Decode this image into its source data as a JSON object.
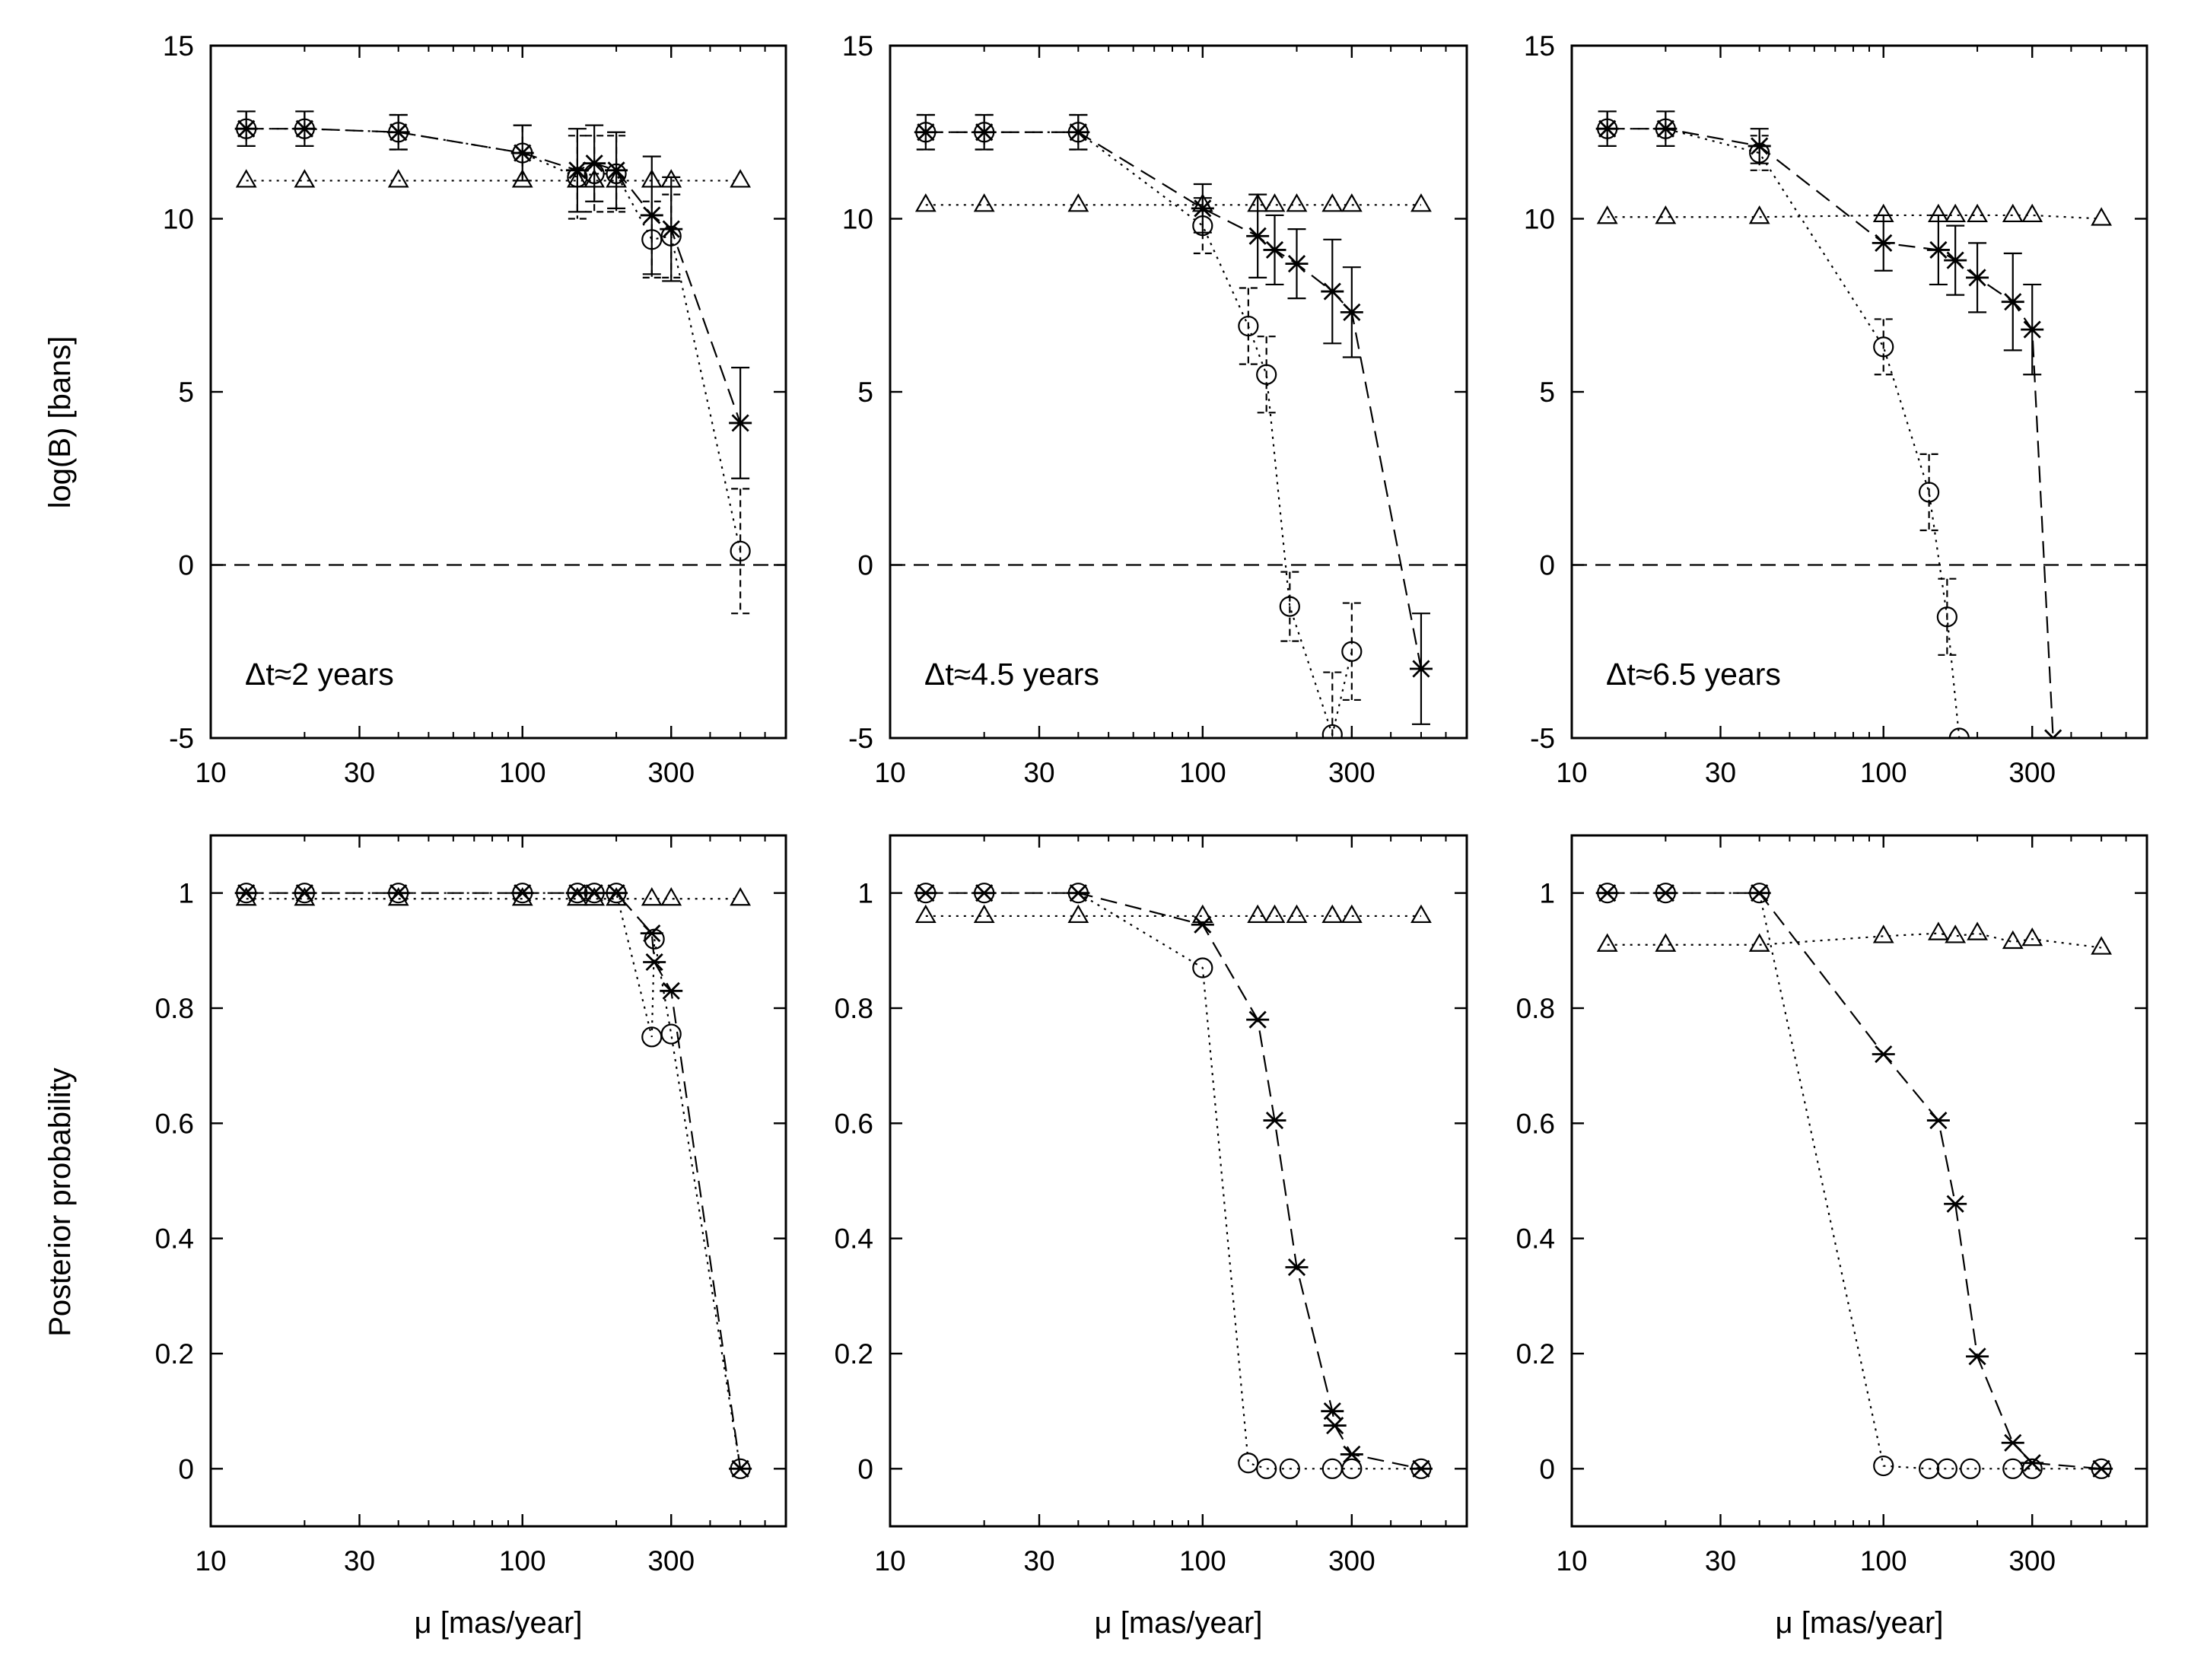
{
  "figure": {
    "row_labels": [
      "log(B) [bans]",
      "Posterior probability"
    ],
    "xlabel": "μ [mas/year]"
  },
  "chart_data": [
    {
      "type": "line",
      "panel": "log-bayes-factor",
      "annotation": "Δt≈2 years",
      "xscale": "log",
      "xlim": [
        10,
        700
      ],
      "ylim": [
        -5,
        15
      ],
      "xticks": [
        10,
        30,
        100,
        300
      ],
      "xtick_labels": [
        "10",
        "30",
        "100",
        "300"
      ],
      "yticks": [
        -5,
        0,
        5,
        10,
        15
      ],
      "ytick_labels": [
        "-5",
        "0",
        "5",
        "10",
        "15"
      ],
      "ylabel": "log(B) [bans]",
      "xlabel": "",
      "reference_line": 0,
      "series": [
        {
          "name": "star",
          "marker": "star",
          "style": "dashed",
          "x": [
            13,
            20,
            40,
            100,
            150,
            170,
            200,
            260,
            300,
            500
          ],
          "y": [
            12.6,
            12.6,
            12.5,
            11.9,
            11.4,
            11.6,
            11.4,
            10.1,
            9.7,
            4.1
          ],
          "err": [
            0.5,
            0.5,
            0.5,
            0.8,
            1.2,
            1.1,
            1.1,
            1.7,
            1.5,
            1.6
          ]
        },
        {
          "name": "circle",
          "marker": "circle",
          "style": "dotted",
          "x": [
            13,
            20,
            40,
            100,
            150,
            170,
            200,
            260,
            300,
            500
          ],
          "y": [
            12.6,
            12.6,
            12.5,
            11.9,
            11.2,
            11.3,
            11.3,
            9.4,
            9.5,
            0.4
          ],
          "err": [
            0.5,
            0.5,
            0.5,
            0.8,
            1.2,
            1.1,
            1.1,
            1.1,
            1.2,
            1.8
          ]
        },
        {
          "name": "triangle",
          "marker": "triangle",
          "style": "dotted",
          "x": [
            13,
            20,
            40,
            100,
            150,
            170,
            200,
            260,
            300,
            500
          ],
          "y": [
            11.1,
            11.1,
            11.1,
            11.1,
            11.1,
            11.1,
            11.1,
            11.1,
            11.1,
            11.1
          ]
        }
      ]
    },
    {
      "type": "line",
      "panel": "log-bayes-factor",
      "annotation": "Δt≈4.5 years",
      "xscale": "log",
      "xlim": [
        10,
        700
      ],
      "ylim": [
        -5,
        15
      ],
      "xticks": [
        10,
        30,
        100,
        300
      ],
      "xtick_labels": [
        "10",
        "30",
        "100",
        "300"
      ],
      "yticks": [
        -5,
        0,
        5,
        10,
        15
      ],
      "ytick_labels": [
        "-5",
        "0",
        "5",
        "10",
        "15"
      ],
      "ylabel": "",
      "xlabel": "",
      "reference_line": 0,
      "series": [
        {
          "name": "star",
          "marker": "star",
          "style": "dashed",
          "x": [
            13,
            20,
            40,
            100,
            150,
            170,
            200,
            260,
            300,
            500
          ],
          "y": [
            12.5,
            12.5,
            12.5,
            10.3,
            9.5,
            9.1,
            8.7,
            7.9,
            7.3,
            -3.0
          ],
          "err": [
            0.5,
            0.5,
            0.5,
            0.7,
            1.2,
            1.0,
            1.0,
            1.5,
            1.3,
            1.6
          ]
        },
        {
          "name": "circle",
          "marker": "circle",
          "style": "dotted",
          "x": [
            13,
            20,
            40,
            100,
            140,
            160,
            190,
            260,
            300
          ],
          "y": [
            12.5,
            12.5,
            12.5,
            9.8,
            6.9,
            5.5,
            -1.2,
            -4.9,
            -2.5
          ],
          "err": [
            0.5,
            0.5,
            0.5,
            0.8,
            1.1,
            1.1,
            1.0,
            1.8,
            1.4
          ]
        },
        {
          "name": "triangle",
          "marker": "triangle",
          "style": "dotted",
          "x": [
            13,
            20,
            40,
            100,
            150,
            170,
            200,
            260,
            300,
            500
          ],
          "y": [
            10.4,
            10.4,
            10.4,
            10.4,
            10.4,
            10.4,
            10.4,
            10.4,
            10.4,
            10.4
          ]
        }
      ]
    },
    {
      "type": "line",
      "panel": "log-bayes-factor",
      "annotation": "Δt≈6.5 years",
      "xscale": "log",
      "xlim": [
        10,
        700
      ],
      "ylim": [
        -5,
        15
      ],
      "xticks": [
        10,
        30,
        100,
        300
      ],
      "xtick_labels": [
        "10",
        "30",
        "100",
        "300"
      ],
      "yticks": [
        -5,
        0,
        5,
        10,
        15
      ],
      "ytick_labels": [
        "-5",
        "0",
        "5",
        "10",
        "15"
      ],
      "ylabel": "",
      "xlabel": "",
      "reference_line": 0,
      "series": [
        {
          "name": "star",
          "marker": "star",
          "style": "dashed",
          "x": [
            13,
            20,
            40,
            100,
            150,
            170,
            200,
            260,
            300,
            350
          ],
          "y": [
            12.6,
            12.6,
            12.1,
            9.3,
            9.1,
            8.8,
            8.3,
            7.6,
            6.8,
            -5.0
          ],
          "err": [
            0.5,
            0.5,
            0.5,
            0.8,
            1.0,
            1.0,
            1.0,
            1.4,
            1.3,
            null
          ]
        },
        {
          "name": "circle",
          "marker": "circle",
          "style": "dotted",
          "x": [
            13,
            20,
            40,
            100,
            140,
            160,
            175
          ],
          "y": [
            12.6,
            12.6,
            11.9,
            6.3,
            2.1,
            -1.5,
            -5.0
          ],
          "err": [
            0.5,
            0.5,
            0.5,
            0.8,
            1.1,
            1.1,
            null
          ]
        },
        {
          "name": "triangle",
          "marker": "triangle",
          "style": "dotted",
          "x": [
            13,
            20,
            40,
            100,
            150,
            170,
            200,
            260,
            300,
            500
          ],
          "y": [
            10.05,
            10.05,
            10.05,
            10.1,
            10.1,
            10.1,
            10.1,
            10.1,
            10.1,
            10.0
          ]
        }
      ]
    },
    {
      "type": "line",
      "panel": "posterior-probability",
      "annotation": "",
      "xscale": "log",
      "xlim": [
        10,
        700
      ],
      "ylim": [
        -0.1,
        1.1
      ],
      "xticks": [
        10,
        30,
        100,
        300
      ],
      "xtick_labels": [
        "10",
        "30",
        "100",
        "300"
      ],
      "yticks": [
        0,
        0.2,
        0.4,
        0.6,
        0.8,
        1
      ],
      "ytick_labels": [
        "0",
        "0.2",
        "0.4",
        "0.6",
        "0.8",
        "1"
      ],
      "ylabel": "Posterior probability",
      "xlabel": "μ [mas/year]",
      "series": [
        {
          "name": "star",
          "marker": "star",
          "style": "dashed",
          "x": [
            13,
            20,
            40,
            100,
            150,
            170,
            200,
            260,
            265,
            300,
            500
          ],
          "y": [
            1.0,
            1.0,
            1.0,
            1.0,
            1.0,
            1.0,
            1.0,
            0.93,
            0.88,
            0.83,
            0.0
          ]
        },
        {
          "name": "circle",
          "marker": "circle",
          "style": "dotted",
          "x": [
            13,
            20,
            40,
            100,
            150,
            170,
            200,
            260,
            265,
            300,
            500
          ],
          "y": [
            1.0,
            1.0,
            1.0,
            1.0,
            1.0,
            1.0,
            1.0,
            0.75,
            0.92,
            0.755,
            0.0
          ]
        },
        {
          "name": "triangle",
          "marker": "triangle",
          "style": "dotted",
          "x": [
            13,
            20,
            40,
            100,
            150,
            170,
            200,
            260,
            300,
            500
          ],
          "y": [
            0.99,
            0.99,
            0.99,
            0.99,
            0.99,
            0.99,
            0.99,
            0.99,
            0.99,
            0.99
          ]
        }
      ]
    },
    {
      "type": "line",
      "panel": "posterior-probability",
      "annotation": "",
      "xscale": "log",
      "xlim": [
        10,
        700
      ],
      "ylim": [
        -0.1,
        1.1
      ],
      "xticks": [
        10,
        30,
        100,
        300
      ],
      "xtick_labels": [
        "10",
        "30",
        "100",
        "300"
      ],
      "yticks": [
        0,
        0.2,
        0.4,
        0.6,
        0.8,
        1
      ],
      "ytick_labels": [
        "0",
        "0.2",
        "0.4",
        "0.6",
        "0.8",
        "1"
      ],
      "ylabel": "",
      "xlabel": "μ [mas/year]",
      "series": [
        {
          "name": "star",
          "marker": "star",
          "style": "dashed",
          "x": [
            13,
            20,
            40,
            100,
            150,
            170,
            200,
            260,
            265,
            300,
            500
          ],
          "y": [
            1.0,
            1.0,
            1.0,
            0.945,
            0.78,
            0.605,
            0.35,
            0.1,
            0.075,
            0.025,
            0.0
          ]
        },
        {
          "name": "circle",
          "marker": "circle",
          "style": "dotted",
          "x": [
            13,
            20,
            40,
            100,
            140,
            160,
            190,
            260,
            300,
            500
          ],
          "y": [
            1.0,
            1.0,
            1.0,
            0.87,
            0.01,
            0.0,
            0.0,
            0.0,
            0.0,
            0.0
          ]
        },
        {
          "name": "triangle",
          "marker": "triangle",
          "style": "dotted",
          "x": [
            13,
            20,
            40,
            100,
            150,
            170,
            200,
            260,
            300,
            500
          ],
          "y": [
            0.96,
            0.96,
            0.96,
            0.96,
            0.96,
            0.96,
            0.96,
            0.96,
            0.96,
            0.96
          ]
        }
      ]
    },
    {
      "type": "line",
      "panel": "posterior-probability",
      "annotation": "",
      "xscale": "log",
      "xlim": [
        10,
        700
      ],
      "ylim": [
        -0.1,
        1.1
      ],
      "xticks": [
        10,
        30,
        100,
        300
      ],
      "xtick_labels": [
        "10",
        "30",
        "100",
        "300"
      ],
      "yticks": [
        0,
        0.2,
        0.4,
        0.6,
        0.8,
        1
      ],
      "ytick_labels": [
        "0",
        "0.2",
        "0.4",
        "0.6",
        "0.8",
        "1"
      ],
      "ylabel": "",
      "xlabel": "μ [mas/year]",
      "series": [
        {
          "name": "star",
          "marker": "star",
          "style": "dashed",
          "x": [
            13,
            20,
            40,
            100,
            150,
            170,
            200,
            260,
            300,
            500
          ],
          "y": [
            1.0,
            1.0,
            1.0,
            0.72,
            0.605,
            0.46,
            0.195,
            0.045,
            0.01,
            0.0
          ]
        },
        {
          "name": "circle",
          "marker": "circle",
          "style": "dotted",
          "x": [
            13,
            20,
            40,
            100,
            140,
            160,
            190,
            260,
            300,
            500
          ],
          "y": [
            1.0,
            1.0,
            1.0,
            0.005,
            0.0,
            0.0,
            0.0,
            0.0,
            0.0,
            0.0
          ]
        },
        {
          "name": "triangle",
          "marker": "triangle",
          "style": "dotted",
          "x": [
            13,
            20,
            40,
            100,
            150,
            170,
            200,
            260,
            300,
            500
          ],
          "y": [
            0.91,
            0.91,
            0.91,
            0.925,
            0.93,
            0.925,
            0.93,
            0.915,
            0.92,
            0.905
          ]
        }
      ]
    }
  ]
}
